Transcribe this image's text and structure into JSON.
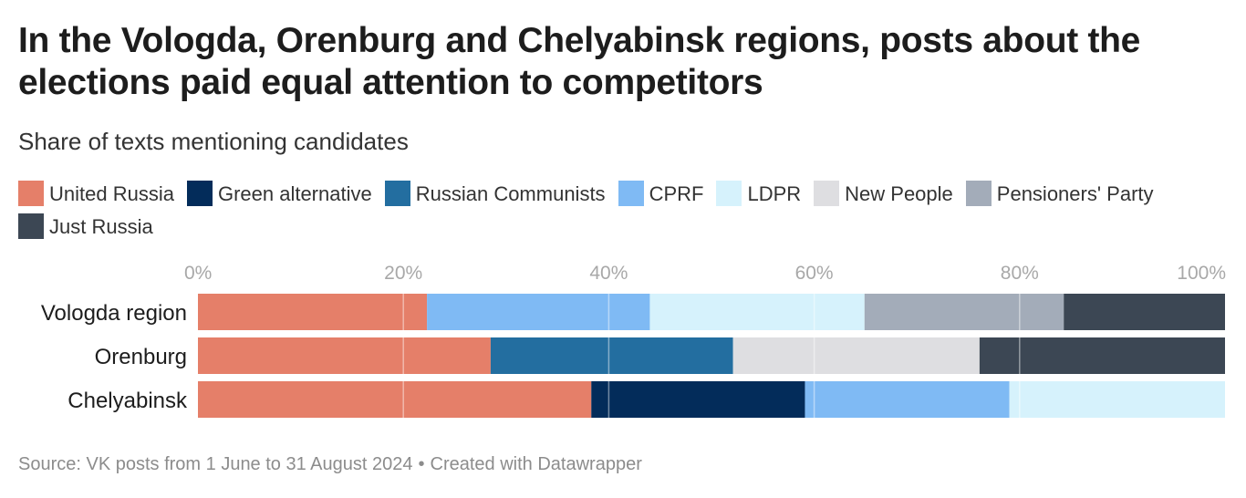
{
  "title": "In the Vologda, Orenburg and Chelyabinsk regions, posts about the elections paid equal attention to competitors",
  "subtitle": "Share of texts mentioning candidates",
  "source": {
    "text": "Source: VK posts from 1 June to 31 August 2024",
    "separator": "•",
    "credit": "Created with Datawrapper"
  },
  "legend": [
    {
      "label": "United Russia",
      "color": "#e57f69"
    },
    {
      "label": "Green alternative",
      "color": "#032c5a"
    },
    {
      "label": "Russian Communists",
      "color": "#236ea0"
    },
    {
      "label": "CPRF",
      "color": "#7fbaf4"
    },
    {
      "label": "LDPR",
      "color": "#d6f2fc"
    },
    {
      "label": "New People",
      "color": "#dedee1"
    },
    {
      "label": "Pensioners' Party",
      "color": "#a3acb9"
    },
    {
      "label": "Just Russia",
      "color": "#3c4754"
    }
  ],
  "chart_data": {
    "type": "bar",
    "orientation": "horizontal",
    "stacked": true,
    "xlim": [
      0,
      100
    ],
    "xticks": [
      "0%",
      "20%",
      "40%",
      "60%",
      "80%",
      "100%"
    ],
    "grid": true,
    "categories": [
      "Vologda region",
      "Orenburg",
      "Chelyabinsk"
    ],
    "series": [
      {
        "name": "United Russia",
        "color": "#e57f69",
        "values": [
          22.3,
          28.5,
          38.3
        ]
      },
      {
        "name": "Green alternative",
        "color": "#032c5a",
        "values": [
          0,
          0,
          20.8
        ]
      },
      {
        "name": "Russian Communists",
        "color": "#236ea0",
        "values": [
          0,
          23.6,
          0
        ]
      },
      {
        "name": "CPRF",
        "color": "#7fbaf4",
        "values": [
          21.7,
          0,
          19.9
        ]
      },
      {
        "name": "LDPR",
        "color": "#d6f2fc",
        "values": [
          20.9,
          0,
          21.0
        ]
      },
      {
        "name": "New People",
        "color": "#dedee1",
        "values": [
          0,
          24.0,
          0
        ]
      },
      {
        "name": "Pensioners' Party",
        "color": "#a3acb9",
        "values": [
          19.4,
          0,
          0
        ]
      },
      {
        "name": "Just Russia",
        "color": "#3c4754",
        "values": [
          15.7,
          23.9,
          0
        ]
      }
    ]
  }
}
